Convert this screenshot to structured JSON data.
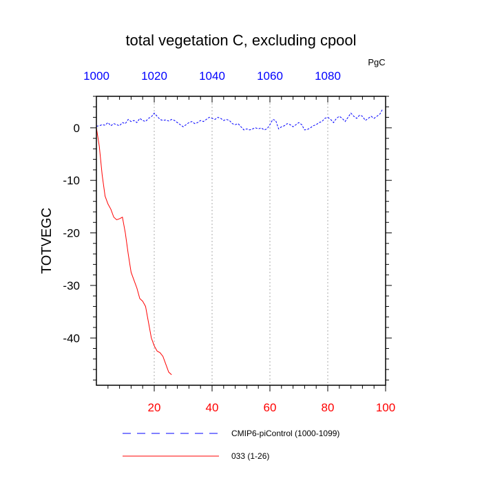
{
  "chart_data": {
    "type": "line",
    "title": "total vegetation C, excluding cpool",
    "units": "PgC",
    "ylabel": "TOTVEGC",
    "ylim": [
      -49,
      6
    ],
    "yticks": [
      0,
      -10,
      -20,
      -30,
      -40
    ],
    "ytick_labels": [
      "0",
      "-10",
      "-20",
      "-30",
      "-40"
    ],
    "bottom_axis": {
      "color": "#ff0000",
      "xlim": [
        0,
        100
      ],
      "ticks": [
        20,
        40,
        60,
        80,
        100
      ],
      "tick_labels": [
        "20",
        "40",
        "60",
        "80",
        "100"
      ]
    },
    "top_axis": {
      "color": "#0000ff",
      "xlim": [
        1000,
        1100
      ],
      "ticks": [
        1000,
        1020,
        1040,
        1060,
        1080
      ],
      "tick_labels": [
        "1000",
        "1020",
        "1040",
        "1060",
        "1080"
      ]
    },
    "grid": "vertical dotted at bottom-axis major ticks",
    "series": [
      {
        "name": "CMIP6-piControl (1000-1099)",
        "axis": "top",
        "color": "#0000ff",
        "dash": "dashed",
        "x": [
          1000,
          1001,
          1002,
          1003,
          1004,
          1005,
          1006,
          1007,
          1008,
          1009,
          1010,
          1011,
          1012,
          1013,
          1014,
          1015,
          1016,
          1017,
          1018,
          1019,
          1020,
          1021,
          1022,
          1023,
          1024,
          1025,
          1026,
          1027,
          1028,
          1029,
          1030,
          1031,
          1032,
          1033,
          1034,
          1035,
          1036,
          1037,
          1038,
          1039,
          1040,
          1041,
          1042,
          1043,
          1044,
          1045,
          1046,
          1047,
          1048,
          1049,
          1050,
          1051,
          1052,
          1053,
          1054,
          1055,
          1056,
          1057,
          1058,
          1059,
          1060,
          1061,
          1062,
          1063,
          1064,
          1065,
          1066,
          1067,
          1068,
          1069,
          1070,
          1071,
          1072,
          1073,
          1074,
          1075,
          1076,
          1077,
          1078,
          1079,
          1080,
          1081,
          1082,
          1083,
          1084,
          1085,
          1086,
          1087,
          1088,
          1089,
          1090,
          1091,
          1092,
          1093,
          1094,
          1095,
          1096,
          1097,
          1098,
          1099
        ],
        "values": [
          0.3,
          0.4,
          0.6,
          0.5,
          1.0,
          0.4,
          0.8,
          0.6,
          0.4,
          1.0,
          0.8,
          1.6,
          1.2,
          1.4,
          1.0,
          1.8,
          1.4,
          1.2,
          1.8,
          2.1,
          2.8,
          2.2,
          1.6,
          1.4,
          1.5,
          1.3,
          1.6,
          1.4,
          1.0,
          0.6,
          0.2,
          0.6,
          1.0,
          1.2,
          0.8,
          1.0,
          1.4,
          1.2,
          1.6,
          2.0,
          1.8,
          1.6,
          2.0,
          1.8,
          1.4,
          1.6,
          1.4,
          0.8,
          0.6,
          0.8,
          0.2,
          -0.4,
          -0.2,
          -0.4,
          -0.2,
          0.0,
          -0.2,
          0.0,
          -0.4,
          -0.2,
          0.6,
          1.6,
          1.4,
          -0.2,
          0.2,
          0.4,
          0.8,
          0.6,
          0.2,
          0.6,
          1.0,
          0.6,
          -0.4,
          -0.3,
          0.0,
          0.4,
          0.6,
          1.0,
          1.2,
          1.8,
          2.0,
          1.6,
          1.0,
          1.8,
          2.2,
          1.8,
          1.2,
          2.0,
          2.8,
          2.2,
          1.8,
          2.4,
          2.2,
          1.4,
          1.8,
          2.2,
          1.8,
          2.2,
          2.6,
          3.6
        ]
      },
      {
        "name": "033 (1-26)",
        "axis": "bottom",
        "color": "#ff0000",
        "dash": "solid",
        "x": [
          0,
          1,
          2,
          3,
          4,
          5,
          6,
          7,
          8,
          9,
          10,
          11,
          12,
          13,
          14,
          15,
          16,
          17,
          18,
          19,
          20,
          21,
          22,
          23,
          24,
          25,
          26
        ],
        "values": [
          0.0,
          -3.5,
          -9.0,
          -13.0,
          -14.5,
          -15.5,
          -17.0,
          -17.5,
          -17.3,
          -17.0,
          -20.0,
          -24.0,
          -27.5,
          -29.0,
          -30.5,
          -32.5,
          -33.0,
          -34.0,
          -37.0,
          -40.0,
          -41.5,
          -42.5,
          -42.8,
          -43.5,
          -45.0,
          -46.5,
          -47.0
        ]
      }
    ],
    "legend": {
      "placement": "bottom",
      "entries": [
        "CMIP6-piControl (1000-1099)",
        "033 (1-26)"
      ]
    }
  }
}
